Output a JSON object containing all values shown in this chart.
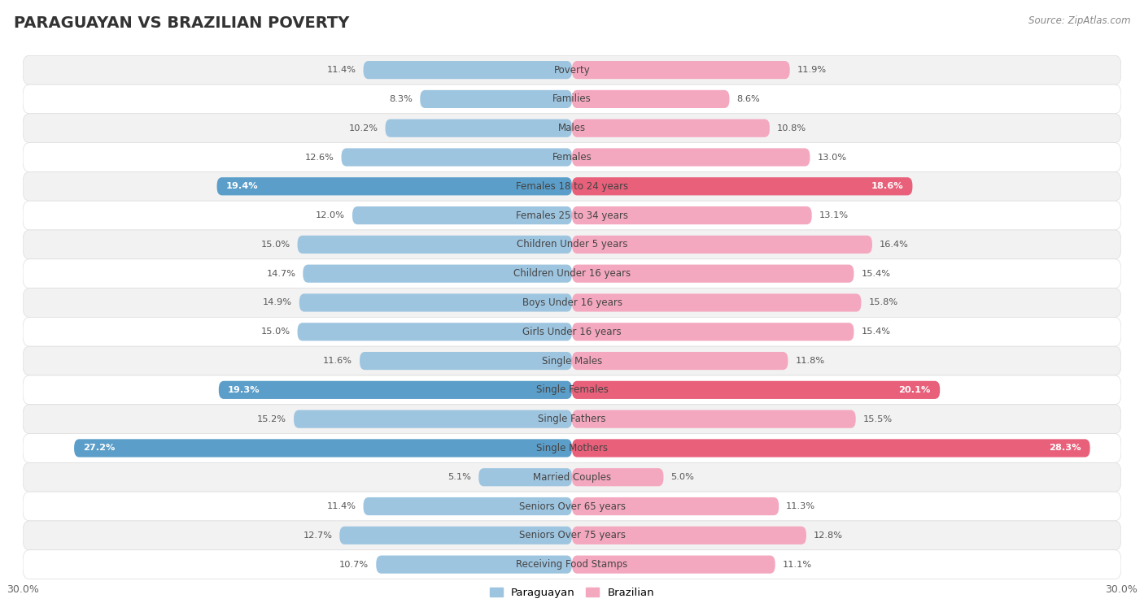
{
  "title": "PARAGUAYAN VS BRAZILIAN POVERTY",
  "source": "Source: ZipAtlas.com",
  "categories": [
    "Poverty",
    "Families",
    "Males",
    "Females",
    "Females 18 to 24 years",
    "Females 25 to 34 years",
    "Children Under 5 years",
    "Children Under 16 years",
    "Boys Under 16 years",
    "Girls Under 16 years",
    "Single Males",
    "Single Females",
    "Single Fathers",
    "Single Mothers",
    "Married Couples",
    "Seniors Over 65 years",
    "Seniors Over 75 years",
    "Receiving Food Stamps"
  ],
  "paraguayan": [
    11.4,
    8.3,
    10.2,
    12.6,
    19.4,
    12.0,
    15.0,
    14.7,
    14.9,
    15.0,
    11.6,
    19.3,
    15.2,
    27.2,
    5.1,
    11.4,
    12.7,
    10.7
  ],
  "brazilian": [
    11.9,
    8.6,
    10.8,
    13.0,
    18.6,
    13.1,
    16.4,
    15.4,
    15.8,
    15.4,
    11.8,
    20.1,
    15.5,
    28.3,
    5.0,
    11.3,
    12.8,
    11.1
  ],
  "paraguayan_color": "#9ec5e0",
  "brazilian_color": "#f4a8bf",
  "paraguayan_highlight_color": "#5b9ec9",
  "brazilian_highlight_color": "#e8607a",
  "highlight_rows": [
    4,
    11,
    13
  ],
  "max_val": 30.0,
  "bar_height": 0.62,
  "row_bg_light": "#f5f5f5",
  "row_bg_dark": "#e8e8e8",
  "legend_paraguayan": "Paraguayan",
  "legend_brazilian": "Brazilian",
  "title_fontsize": 14,
  "label_fontsize": 8.5,
  "value_fontsize": 8.2
}
